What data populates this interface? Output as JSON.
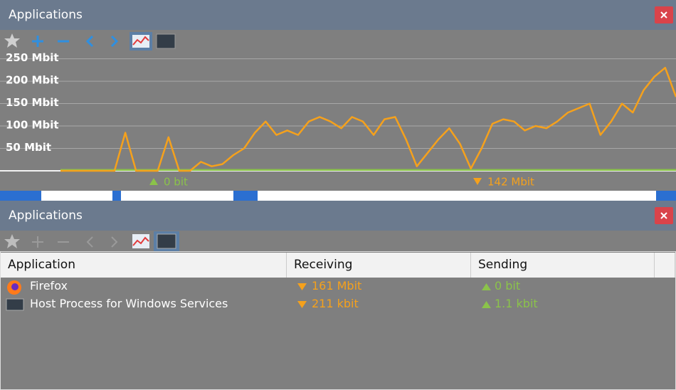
{
  "top_panel": {
    "title": "Applications"
  },
  "chart_data": {
    "type": "line",
    "ylim": [
      0,
      270
    ],
    "yticks": [
      {
        "value": 50,
        "label": "50 Mbit"
      },
      {
        "value": 100,
        "label": "100 Mbit"
      },
      {
        "value": 150,
        "label": "150 Mbit"
      },
      {
        "value": 200,
        "label": "200 Mbit"
      },
      {
        "value": 250,
        "label": "250 Mbit"
      }
    ],
    "grid": true,
    "series": [
      {
        "color": "#f5a11c",
        "values": [
          0,
          0,
          0,
          0,
          0,
          0,
          85,
          0,
          0,
          0,
          75,
          0,
          0,
          20,
          10,
          15,
          35,
          50,
          85,
          110,
          80,
          90,
          80,
          110,
          120,
          110,
          95,
          120,
          110,
          80,
          115,
          120,
          70,
          10,
          40,
          70,
          95,
          60,
          5,
          50,
          105,
          115,
          110,
          90,
          100,
          95,
          110,
          130,
          140,
          150,
          80,
          110,
          150,
          130,
          180,
          210,
          230,
          165
        ]
      },
      {
        "color": "#8bc34a",
        "values": [
          2,
          2,
          2,
          2,
          2,
          2,
          2,
          2,
          2,
          2,
          2,
          2,
          2,
          2,
          2,
          2,
          2,
          2,
          2,
          2,
          2,
          2,
          2,
          2,
          2,
          2,
          2,
          2,
          2,
          2,
          2,
          2,
          2,
          2,
          2,
          2,
          2,
          2,
          2,
          2,
          2,
          2,
          2,
          2,
          2,
          2,
          2,
          2,
          2,
          2,
          2,
          2,
          2,
          2,
          2,
          2,
          2,
          2
        ]
      }
    ],
    "status": {
      "sending": "0 bit",
      "receiving": "142 Mbit"
    }
  },
  "bottom_panel": {
    "title": "Applications",
    "table": {
      "header": [
        "Application",
        "Receiving",
        "Sending"
      ],
      "rows": [
        [
          "Firefox",
          "161 Mbit",
          "0 bit"
        ],
        [
          "Host Process for Windows Services",
          "211 kbit",
          "1.1 kbit"
        ]
      ]
    }
  }
}
